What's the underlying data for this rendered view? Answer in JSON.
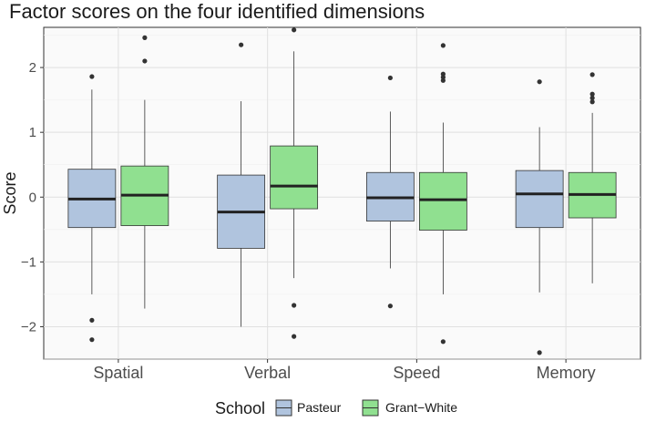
{
  "chart_data": {
    "type": "boxplot",
    "title": "Factor scores on the four identified dimensions",
    "xlabel": "",
    "ylabel": "Score",
    "ylim": [
      -2.5,
      2.62
    ],
    "yticks": [
      -2,
      -1,
      0,
      1,
      2
    ],
    "ytick_labels": [
      "−2",
      "−1",
      "0",
      "1",
      "2"
    ],
    "grid": true,
    "legend_position": "bottom",
    "legend_title": "School",
    "categories": [
      "Spatial",
      "Verbal",
      "Speed",
      "Memory"
    ],
    "series": [
      {
        "name": "Pasteur",
        "color": "#b0c4de",
        "boxes": [
          {
            "min": -1.5,
            "q1": -0.47,
            "median": -0.03,
            "q3": 0.43,
            "max": 1.66,
            "outliers": [
              1.86,
              -1.9,
              -2.2
            ]
          },
          {
            "min": -2.0,
            "q1": -0.79,
            "median": -0.23,
            "q3": 0.34,
            "max": 1.48,
            "outliers": [
              2.35
            ]
          },
          {
            "min": -1.1,
            "q1": -0.37,
            "median": -0.01,
            "q3": 0.38,
            "max": 1.32,
            "outliers": [
              1.84,
              -1.68
            ]
          },
          {
            "min": -1.47,
            "q1": -0.47,
            "median": 0.05,
            "q3": 0.41,
            "max": 1.08,
            "outliers": [
              1.78,
              -2.4
            ]
          }
        ]
      },
      {
        "name": "Grant−White",
        "color": "#90e090",
        "boxes": [
          {
            "min": -1.72,
            "q1": -0.44,
            "median": 0.03,
            "q3": 0.48,
            "max": 1.5,
            "outliers": [
              2.46,
              2.1
            ]
          },
          {
            "min": -1.25,
            "q1": -0.18,
            "median": 0.17,
            "q3": 0.79,
            "max": 2.25,
            "outliers": [
              2.58,
              -1.67,
              -2.15
            ]
          },
          {
            "min": -1.5,
            "q1": -0.51,
            "median": -0.04,
            "q3": 0.38,
            "max": 1.15,
            "outliers": [
              2.34,
              1.9,
              1.85,
              1.8,
              -2.23
            ]
          },
          {
            "min": -1.33,
            "q1": -0.32,
            "median": 0.04,
            "q3": 0.38,
            "max": 1.3,
            "outliers": [
              1.89,
              1.59,
              1.53,
              1.47
            ]
          }
        ]
      }
    ]
  }
}
